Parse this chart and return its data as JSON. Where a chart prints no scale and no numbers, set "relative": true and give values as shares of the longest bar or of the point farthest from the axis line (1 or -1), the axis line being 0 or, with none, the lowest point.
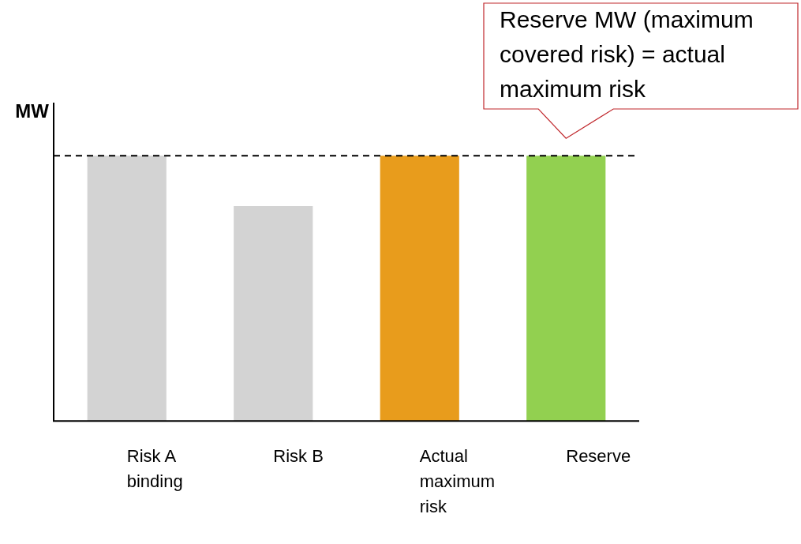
{
  "chart_data": {
    "type": "bar",
    "ylabel": "MW",
    "relative": true,
    "categories": [
      "Risk A binding",
      "Risk B",
      "Actual maximum risk",
      "Reserve"
    ],
    "values": [
      1,
      0.81,
      1,
      1
    ],
    "colors": [
      "#d3d3d3",
      "#d3d3d3",
      "#e89c1c",
      "#92d050"
    ],
    "ref_lines": [
      {
        "axis": "y",
        "value": 1,
        "color": "#000000",
        "line_style": "dashed"
      }
    ],
    "annotations": [
      {
        "text": "Reserve MW (maximum covered risk) = actual maximum risk",
        "x": "Reserve",
        "y": 1
      }
    ],
    "grid": false,
    "legend": false
  }
}
